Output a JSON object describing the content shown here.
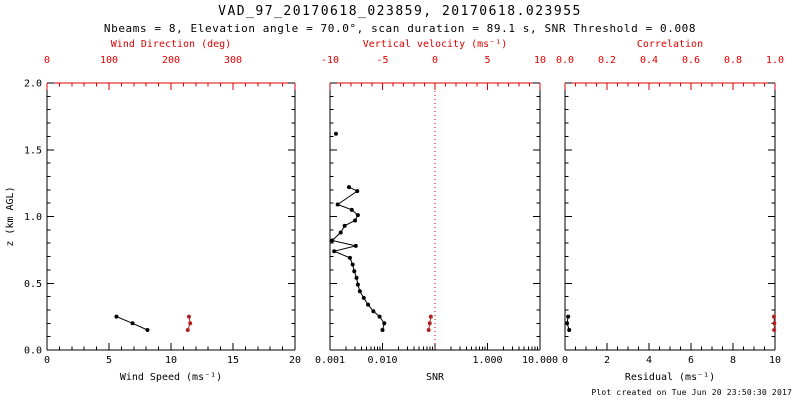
{
  "header": {
    "title": "VAD_97_20170618_023859, 20170618.023955",
    "subtitle": "Nbeams = 8, Elevation angle = 70.0°, scan duration = 89.1 s, SNR Threshold = 0.008"
  },
  "footer": {
    "created_text": "Plot created on Tue Jun 20 23:50:30 2017"
  },
  "colors": {
    "background": "#ffffff",
    "axis": "#000000",
    "secondary_axis": "#dd0000",
    "series_primary": "#000000",
    "series_secondary": "#b22222"
  },
  "chart_data": {
    "type": "line",
    "title": "VAD_97_20170618_023859, 20170618.023955",
    "ylabel": "z (km AGL)",
    "ylim": [
      0,
      2
    ],
    "y_minor_step": 0.1,
    "yticks": [
      {
        "v": 0.0,
        "label": "0.0"
      },
      {
        "v": 0.5,
        "label": "0.5"
      },
      {
        "v": 1.0,
        "label": "1.0"
      },
      {
        "v": 1.5,
        "label": "1.5"
      },
      {
        "v": 2.0,
        "label": "2.0"
      }
    ],
    "panels": [
      {
        "id": "wind",
        "bottom_axis": {
          "title": "Wind Speed (ms⁻¹)",
          "scale": "linear",
          "range": [
            0,
            20
          ],
          "minor_step": 1,
          "ticks": [
            {
              "v": 0,
              "label": "0"
            },
            {
              "v": 5,
              "label": "5"
            },
            {
              "v": 10,
              "label": "10"
            },
            {
              "v": 15,
              "label": "15"
            },
            {
              "v": 20,
              "label": "20"
            }
          ]
        },
        "top_axis": {
          "title": "Wind Direction (deg)",
          "scale": "linear",
          "range": [
            0,
            400
          ],
          "minor_step": 20,
          "ticks": [
            {
              "v": 0,
              "label": "0"
            },
            {
              "v": 100,
              "label": "100"
            },
            {
              "v": 200,
              "label": "200"
            },
            {
              "v": 300,
              "label": "300"
            },
            {
              "v": 400,
              "label": ""
            }
          ]
        },
        "series": [
          {
            "name": "wind-speed-profile",
            "axis": "bottom",
            "color_key": "series_primary",
            "segments": [
              [
                [
                  5.6,
                  0.25
                ],
                [
                  6.9,
                  0.2
                ],
                [
                  8.1,
                  0.15
                ]
              ]
            ]
          },
          {
            "name": "wind-direction-profile",
            "axis": "top",
            "color_key": "series_secondary",
            "segments": [
              [
                [
                  229,
                  0.25
                ],
                [
                  231,
                  0.2
                ],
                [
                  227,
                  0.15
                ]
              ]
            ]
          }
        ]
      },
      {
        "id": "snr",
        "bottom_axis": {
          "title": "SNR",
          "scale": "log",
          "range": [
            0.001,
            10
          ],
          "ticks": [
            {
              "v": 0.001,
              "label": "0.001"
            },
            {
              "v": 0.01,
              "label": "0.010"
            },
            {
              "v": 0.1,
              "label": ""
            },
            {
              "v": 1,
              "label": "1.000"
            },
            {
              "v": 10,
              "label": "10.000"
            }
          ]
        },
        "top_axis": {
          "title": "Vertical velocity (ms⁻¹)",
          "scale": "linear",
          "range": [
            -10,
            10
          ],
          "minor_step": 1,
          "ticks": [
            {
              "v": -10,
              "label": "-10"
            },
            {
              "v": -5,
              "label": "-5"
            },
            {
              "v": 0,
              "label": "0"
            },
            {
              "v": 5,
              "label": "5"
            },
            {
              "v": 10,
              "label": "10"
            }
          ]
        },
        "refline": {
          "axis": "top",
          "value": 0,
          "style": "dotted"
        },
        "series": [
          {
            "name": "snr-profile",
            "axis": "bottom",
            "color_key": "series_primary",
            "segments": [
              [
                [
                  0.0013,
                  1.62
                ]
              ],
              [
                [
                  0.0023,
                  1.22
                ],
                [
                  0.0033,
                  1.19
                ],
                [
                  0.0014,
                  1.09
                ],
                [
                  0.0026,
                  1.05
                ],
                [
                  0.0034,
                  1.01
                ],
                [
                  0.003,
                  0.97
                ],
                [
                  0.0019,
                  0.93
                ],
                [
                  0.0016,
                  0.88
                ],
                [
                  0.0011,
                  0.82
                ],
                [
                  0.0031,
                  0.78
                ],
                [
                  0.0012,
                  0.74
                ],
                [
                  0.0024,
                  0.69
                ],
                [
                  0.0027,
                  0.64
                ],
                [
                  0.0029,
                  0.59
                ],
                [
                  0.0032,
                  0.54
                ],
                [
                  0.0034,
                  0.49
                ],
                [
                  0.0037,
                  0.44
                ],
                [
                  0.0044,
                  0.39
                ],
                [
                  0.0053,
                  0.34
                ],
                [
                  0.0067,
                  0.29
                ],
                [
                  0.0088,
                  0.25
                ],
                [
                  0.0108,
                  0.2
                ],
                [
                  0.01,
                  0.15
                ]
              ]
            ]
          },
          {
            "name": "vertical-velocity-profile",
            "axis": "top",
            "color_key": "series_secondary",
            "segments": [
              [
                [
                  -0.4,
                  0.25
                ],
                [
                  -0.5,
                  0.2
                ],
                [
                  -0.6,
                  0.15
                ]
              ]
            ]
          }
        ]
      },
      {
        "id": "residual",
        "bottom_axis": {
          "title": "Residual (ms⁻¹)",
          "scale": "linear",
          "range": [
            0,
            10
          ],
          "minor_step": 0.5,
          "ticks": [
            {
              "v": 0,
              "label": "0"
            },
            {
              "v": 2,
              "label": "2"
            },
            {
              "v": 4,
              "label": "4"
            },
            {
              "v": 6,
              "label": "6"
            },
            {
              "v": 8,
              "label": "8"
            },
            {
              "v": 10,
              "label": "10"
            }
          ]
        },
        "top_axis": {
          "title": "Correlation",
          "scale": "linear",
          "range": [
            0,
            1
          ],
          "minor_step": 0.05,
          "ticks": [
            {
              "v": 0,
              "label": "0.0"
            },
            {
              "v": 0.2,
              "label": "0.2"
            },
            {
              "v": 0.4,
              "label": "0.4"
            },
            {
              "v": 0.6,
              "label": "0.6"
            },
            {
              "v": 0.8,
              "label": "0.8"
            },
            {
              "v": 1,
              "label": "1.0"
            }
          ]
        },
        "series": [
          {
            "name": "residual-profile",
            "axis": "bottom",
            "color_key": "series_primary",
            "segments": [
              [
                [
                  0.15,
                  0.25
                ],
                [
                  0.1,
                  0.2
                ],
                [
                  0.2,
                  0.15
                ]
              ]
            ]
          },
          {
            "name": "correlation-profile",
            "axis": "top",
            "color_key": "series_secondary",
            "segments": [
              [
                [
                  0.995,
                  0.25
                ],
                [
                  0.997,
                  0.2
                ],
                [
                  0.996,
                  0.15
                ]
              ]
            ]
          }
        ]
      }
    ]
  }
}
